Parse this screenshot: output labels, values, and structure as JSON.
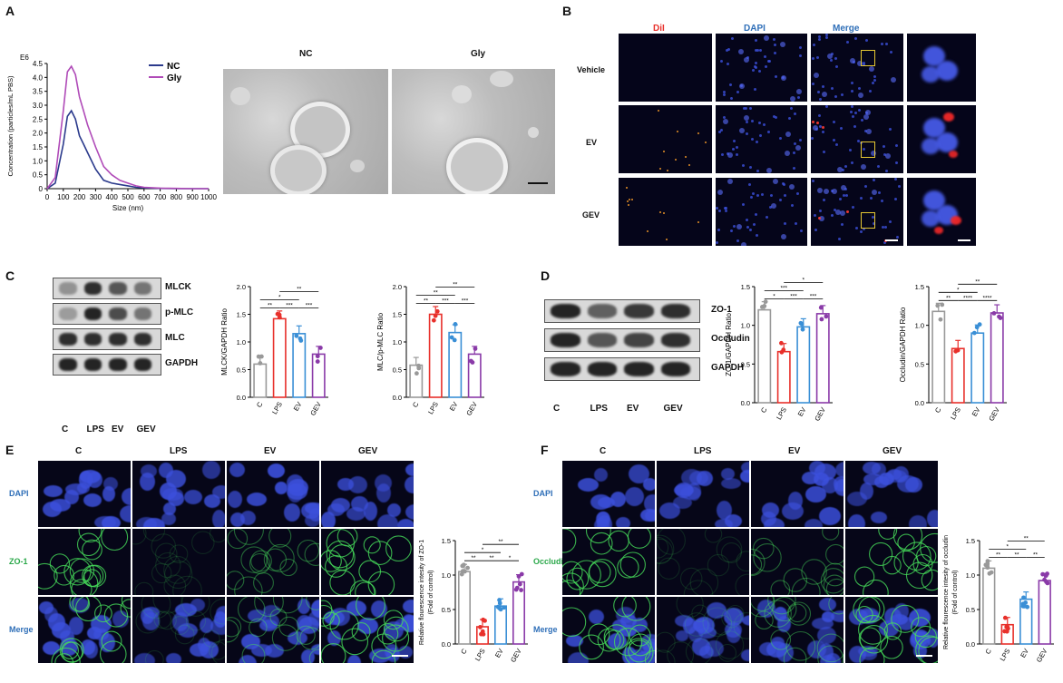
{
  "panels": [
    "A",
    "B",
    "C",
    "D",
    "E",
    "F"
  ],
  "colors": {
    "NC": "#2b3a8c",
    "Gly": "#b04bb8",
    "C": "#999999",
    "LPS": "#e8302b",
    "EV": "#3a8fd6",
    "GEV": "#8a3aa8",
    "dil": "#e8302b",
    "dapi": "#2f6fb8",
    "merge": "#2f6fb8"
  },
  "panelA": {
    "chart_data": {
      "type": "line",
      "x": [
        0,
        50,
        100,
        125,
        150,
        175,
        200,
        225,
        250,
        300,
        350,
        400,
        450,
        500,
        550,
        600,
        700,
        800,
        900,
        1000
      ],
      "series": [
        {
          "name": "NC",
          "values": [
            0,
            0.2,
            1.6,
            2.6,
            2.8,
            2.5,
            1.9,
            1.6,
            1.3,
            0.7,
            0.3,
            0.2,
            0.15,
            0.1,
            0.05,
            0.03,
            0.01,
            0,
            0,
            0
          ]
        },
        {
          "name": "Gly",
          "values": [
            0,
            0.4,
            2.8,
            4.2,
            4.4,
            4.1,
            3.3,
            2.8,
            2.3,
            1.5,
            0.8,
            0.5,
            0.3,
            0.2,
            0.1,
            0.05,
            0.02,
            0.01,
            0,
            0
          ]
        }
      ],
      "xlabel": "Size (nm)",
      "ylabel": "Concentration (particles/mL PBS)",
      "y_exponent": "E6",
      "xlim": [
        0,
        1000
      ],
      "ylim": [
        0,
        4.5
      ],
      "xticks": [
        "0",
        "100",
        "200",
        "300",
        "400",
        "500",
        "600",
        "700",
        "800",
        "900",
        "1000"
      ],
      "yticks": [
        "0",
        "0.5",
        "1.0",
        "1.5",
        "2.0",
        "2.5",
        "3.0",
        "3.5",
        "4.0",
        "4.5"
      ],
      "legend_placement": "top-right"
    },
    "tem_labels": [
      "NC",
      "Gly"
    ]
  },
  "panelB": {
    "columns": [
      "DiI",
      "DAPI",
      "Merge"
    ],
    "rows": [
      "Vehicle",
      "EV",
      "GEV"
    ]
  },
  "panelC": {
    "blot_labels": [
      "MLCK",
      "p-MLC",
      "MLC",
      "GAPDH"
    ],
    "lanes": [
      "C",
      "LPS",
      "EV",
      "GEV"
    ],
    "chart_data": [
      {
        "type": "bar",
        "categories": [
          "C",
          "LPS",
          "EV",
          "GEV"
        ],
        "values": [
          0.6,
          1.42,
          1.15,
          0.78
        ],
        "ylabel": "MLCK/GAPDH Ratio",
        "ylim": [
          0,
          2.0
        ],
        "yticks": [
          "0.0",
          "0.5",
          "1.0",
          "1.5",
          "2.0"
        ],
        "significance": [
          "**",
          "***",
          "***",
          "*",
          "**"
        ]
      },
      {
        "type": "bar",
        "categories": [
          "C",
          "LPS",
          "EV",
          "GEV"
        ],
        "values": [
          0.58,
          1.5,
          1.17,
          0.78
        ],
        "ylabel": "MLC/p-MLC Ratio",
        "ylim": [
          0,
          2.0
        ],
        "yticks": [
          "0.0",
          "0.5",
          "1.0",
          "1.5",
          "2.0"
        ],
        "significance": [
          "**",
          "***",
          "***",
          "**",
          "**"
        ]
      }
    ]
  },
  "panelD": {
    "blot_labels": [
      "ZO-1",
      "Occludin",
      "GAPDH"
    ],
    "lanes": [
      "C",
      "LPS",
      "EV",
      "GEV"
    ],
    "chart_data": [
      {
        "type": "bar",
        "categories": [
          "C",
          "LPS",
          "EV",
          "GEV"
        ],
        "values": [
          1.2,
          0.66,
          0.98,
          1.15
        ],
        "ylabel": "ZO-1/GAPDH Ratio",
        "ylim": [
          0,
          1.5
        ],
        "yticks": [
          "0.0",
          "0.5",
          "1.0",
          "1.5"
        ],
        "significance": [
          "*",
          "***",
          "***",
          "***",
          "*"
        ]
      },
      {
        "type": "bar",
        "categories": [
          "C",
          "LPS",
          "EV",
          "GEV"
        ],
        "values": [
          1.18,
          0.7,
          0.9,
          1.16
        ],
        "ylabel": "Occludin/GAPDH Ratio",
        "ylim": [
          0,
          1.5
        ],
        "yticks": [
          "0.0",
          "0.5",
          "1.0",
          "1.5"
        ],
        "significance": [
          "**",
          "****",
          "****",
          "*",
          "**"
        ]
      }
    ]
  },
  "panelE": {
    "columns": [
      "C",
      "LPS",
      "EV",
      "GEV"
    ],
    "rows": [
      "DAPI",
      "ZO-1",
      "Merge"
    ],
    "chart_data": {
      "type": "bar",
      "categories": [
        "C",
        "LPS",
        "EV",
        "GEV"
      ],
      "values": [
        1.05,
        0.25,
        0.55,
        0.9
      ],
      "ylabel": "Relative flourescence intesity of ZO-1 (Fold of control)",
      "ylim": [
        0,
        1.5
      ],
      "yticks": [
        "0.0",
        "0.5",
        "1.0",
        "1.5"
      ],
      "significance": [
        "**",
        "**",
        "*",
        "*",
        "**"
      ]
    }
  },
  "panelF": {
    "columns": [
      "C",
      "LPS",
      "EV",
      "GEV"
    ],
    "rows": [
      "DAPI",
      "Occludin",
      "Merge"
    ],
    "chart_data": {
      "type": "bar",
      "categories": [
        "C",
        "LPS",
        "EV",
        "GEV"
      ],
      "values": [
        1.1,
        0.28,
        0.65,
        0.92
      ],
      "ylabel": "Relative flourescence intesity of occludin (Fold of control)",
      "ylim": [
        0,
        1.5
      ],
      "yticks": [
        "0.0",
        "0.5",
        "1.0",
        "1.5"
      ],
      "significance": [
        "**",
        "**",
        "**",
        "*",
        "**"
      ]
    }
  }
}
